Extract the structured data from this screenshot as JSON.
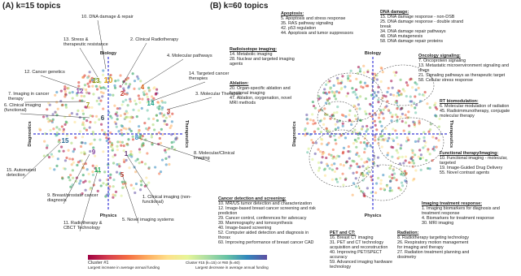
{
  "panels": [
    {
      "title": "(A) k=15 topics",
      "axes": {
        "top": "Biology",
        "bottom": "Physics",
        "left": "Diagnostics",
        "right": "Therapeutics"
      },
      "labels": [
        {
          "lines": [
            "10. DNA damage & repair"
          ]
        },
        {
          "lines": [
            "13. Stress &",
            "therapeutic resistance"
          ]
        },
        {
          "lines": [
            "2. Clinical Radiotherapy"
          ]
        },
        {
          "lines": [
            "4. Molecular pathways"
          ]
        },
        {
          "lines": [
            "12. Cancer genetics"
          ]
        },
        {
          "lines": [
            "14. Targeted cancer",
            "therapies"
          ]
        },
        {
          "lines": [
            "7. Imaging in cancer",
            "therapy"
          ]
        },
        {
          "lines": [
            "3. Molecular Therapies"
          ]
        },
        {
          "lines": [
            "6. Clinical imaging",
            "(functional)"
          ]
        },
        {
          "lines": [
            "8. Molecular/Clinical",
            "imaging"
          ]
        },
        {
          "lines": [
            "15. Automated",
            "detection"
          ]
        },
        {
          "lines": [
            "9. Breast/prostate cancer",
            "diagnosis"
          ]
        },
        {
          "lines": [
            "1. Clinical imaging (non-",
            "functional)"
          ]
        },
        {
          "lines": [
            "11. Radiotherapy &",
            "CBCT Technology"
          ]
        },
        {
          "lines": [
            "5. Novel imaging systems"
          ]
        }
      ],
      "cluster_numbers": [
        "10",
        "2",
        "4",
        "13",
        "12",
        "14",
        "7",
        "3",
        "6",
        "8",
        "1",
        "15",
        "9",
        "11",
        "5"
      ]
    },
    {
      "title": "(B) k=60 topics",
      "axes": {
        "top": "Biology",
        "bottom": "Physics",
        "left": "Diagnostics",
        "right": "Therapeutics"
      },
      "groups": [
        {
          "heading": "Apoptosis:",
          "items": [
            "5. Apoptosis and stress response",
            "35. RAS pathway signaling",
            "42. p53 regulation",
            "44. Apoptosis and tumor suppressors"
          ]
        },
        {
          "heading": "DNA damage:",
          "items": [
            "15. DNA damage response - non-DSB",
            "25. DNA damage response - double strand break",
            "34. DNA damage repair pathways",
            "48. DNA mutagenesis",
            "58. DNA damage repair proteins"
          ]
        },
        {
          "heading": "Radioisotope imaging:",
          "items": [
            "14. Metabolic imaging",
            "28. Nuclear and targeted imaging agents"
          ]
        },
        {
          "heading": "Oncology signaling:",
          "items": [
            "7. Oncoprotein signaling",
            "13. Metastatic microenvironment signaling and drugs",
            "21. Signaling pathways as therapeutic target",
            "58. Cellular stress response"
          ]
        },
        {
          "heading": "Ablation:",
          "items": [
            "20. Organ-specific ablation and functional imaging",
            "47. Ablation, oxygenation, novel MRI methods"
          ]
        },
        {
          "heading": "RT biomodulation:",
          "items": [
            "6. Molecular modulation of radiation",
            "45. Radioimmunotherapy, conjugate molecular therapy"
          ]
        },
        {
          "heading": "Functional therapy/imaging:",
          "items": [
            "10. Functional imaging - molecular, targeted",
            "19. Image-Guided Drug Delivery",
            "55. Novel contrast agents"
          ]
        },
        {
          "heading": "Cancer detection and screening:",
          "items": [
            "10. MR/US tumor detection and characterization",
            "12. Image-based breast cancer screening and risk prediction",
            "29. Cancer control, conferences for advocacy",
            "39. Mammography and tomosynthesis",
            "40. Image-based screening",
            "52. Computer aided detection and diagnosis in thorax",
            "60. Improving performance of breast cancer CAD"
          ]
        },
        {
          "heading": "Imaging treatment response:",
          "items": [
            "1. Imaging biomarkers for diagnosis and treatment response",
            "4. Biomarkers for treatment response",
            "30. MRI imaging"
          ]
        },
        {
          "heading": "PET and CT:",
          "items": [
            "16. Breast CT imaging",
            "31. PET and CT technology acquisition and reconstruction",
            "40. Improving PET/SPECT accuracy",
            "59. Advanced imaging hardware technology"
          ]
        },
        {
          "heading": "Radiation:",
          "items": [
            "8. Radiotherapy targeting technology",
            "26. Respiratory motion management for imaging and therapy",
            "27. Radiation treatment planning and dosimetry"
          ]
        }
      ]
    }
  ],
  "legend": {
    "start": "Cluster #1",
    "start_note": "Largest increase in average annual funding",
    "end": "Cluster #15 (k=15) or #60 (k=60)",
    "end_note": "Largest decrease in average annual funding"
  }
}
